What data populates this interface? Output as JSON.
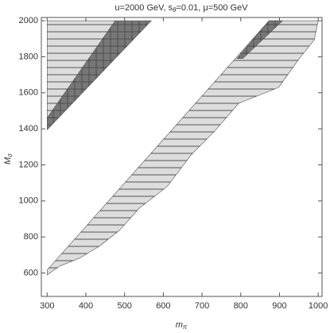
{
  "chart_data": {
    "type": "region",
    "title": {
      "pre": "u=2000 GeV, s",
      "sub": "θ",
      "post": "=0.01, μ=500 GeV"
    },
    "xlabel": {
      "text": "m",
      "sub": "π"
    },
    "ylabel": {
      "text": "M",
      "sub": "σ"
    },
    "xlim": [
      285,
      1010
    ],
    "ylim": [
      470,
      2018
    ],
    "xticks": [
      300,
      400,
      500,
      600,
      700,
      800,
      900,
      1000
    ],
    "yticks": [
      600,
      800,
      1000,
      1200,
      1400,
      1600,
      1800,
      2000
    ],
    "series": [
      {
        "color": "#dddddd",
        "hatch": "horizontal",
        "x": [
          300,
          476,
          300
        ],
        "y": [
          1460,
          2000,
          2000
        ]
      },
      {
        "color": "#777777",
        "hatch": "cross",
        "x": [
          300,
          569,
          476,
          300
        ],
        "y": [
          1395,
          2000,
          2000,
          1460
        ]
      },
      {
        "color": "#dddddd",
        "hatch": "horizontal",
        "x": [
          300,
          873,
          1000,
          990,
          949,
          898,
          795,
          733,
          672,
          610,
          538,
          487,
          435,
          384,
          333,
          300
        ],
        "y": [
          617,
          2000,
          2000,
          1894,
          1784,
          1630,
          1542,
          1388,
          1256,
          1080,
          960,
          837,
          749,
          683,
          639,
          590
        ]
      },
      {
        "color": "#777777",
        "hatch": "cross",
        "x": [
          790,
          873,
          908,
          805
        ],
        "y": [
          1790,
          2000,
          2000,
          1790
        ]
      }
    ]
  }
}
